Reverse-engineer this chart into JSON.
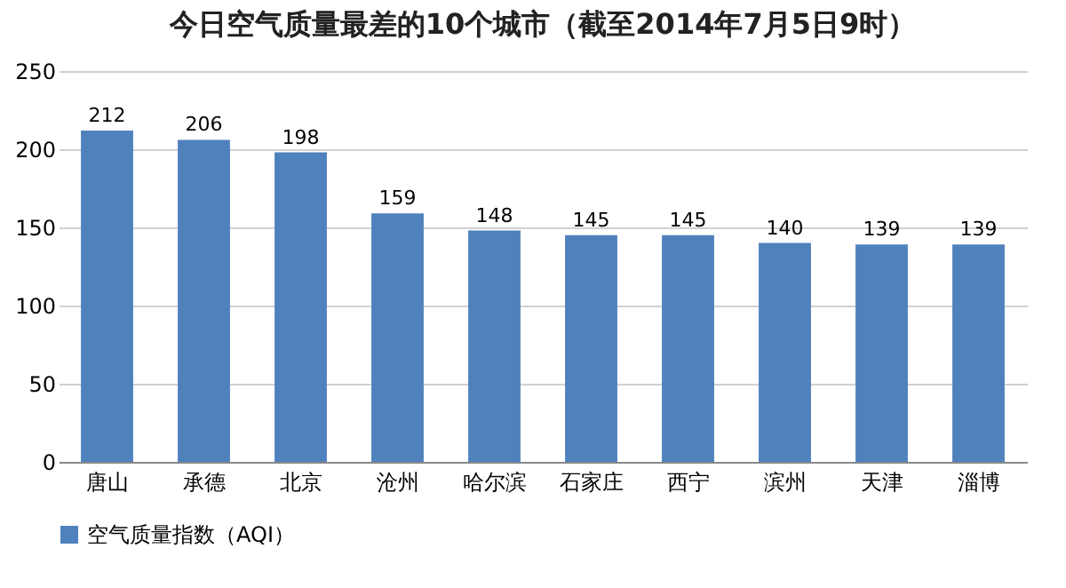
{
  "chart_data": {
    "type": "bar",
    "title": "今日空气质量最差的10个城市（截至2014年7月5日9时）",
    "categories": [
      "唐山",
      "承德",
      "北京",
      "沧州",
      "哈尔滨",
      "石家庄",
      "西宁",
      "滨州",
      "天津",
      "淄博"
    ],
    "series": [
      {
        "name": "空气质量指数（AQI）",
        "color": "#4f81bd",
        "values": [
          212,
          206,
          198,
          159,
          148,
          145,
          145,
          140,
          139,
          139
        ]
      }
    ],
    "ylim": [
      0,
      250
    ],
    "yticks": [
      0,
      50,
      100,
      150,
      200,
      250
    ],
    "grid": "y",
    "legend": "bottom",
    "data_labels": true
  }
}
